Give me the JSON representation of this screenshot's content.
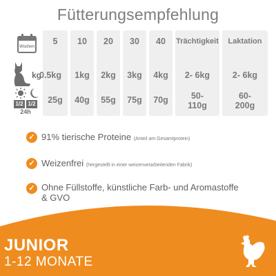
{
  "title": "Fütterungsempfehlung",
  "labels": {
    "weeks": "Wochen",
    "kg": "kg",
    "half1": "1/2",
    "half2": "1/2",
    "hours": "24h"
  },
  "columns": [
    {
      "head": "5",
      "weight": "0.5kg",
      "food": "25g"
    },
    {
      "head": "10",
      "weight": "1kg",
      "food": "40g"
    },
    {
      "head": "20",
      "weight": "2kg",
      "food": "55g"
    },
    {
      "head": "30",
      "weight": "3kg",
      "food": "75g"
    },
    {
      "head": "40",
      "weight": "4kg",
      "food": "70g"
    },
    {
      "head": "Trächtigkeit",
      "weight": "2- 6kg",
      "food_line1": "50-",
      "food_line2": "110g"
    },
    {
      "head": "Laktation",
      "weight": "2- 6kg",
      "food_line1": "60-",
      "food_line2": "200g"
    }
  ],
  "features": [
    {
      "text": "91% tierische Proteine",
      "note": "(Anteil am Gesamtprotein)"
    },
    {
      "text": "Weizenfrei",
      "note": "(hergestellt in einer weizenverarbeitenden Fabrik)"
    },
    {
      "text_line1": "Ohne Füllstoffe, künstliche Farb- und Aromastoffe",
      "text_line2": "& GVO"
    }
  ],
  "banner": {
    "line1": "JUNIOR",
    "line2": "1-12 MONATE"
  },
  "colors": {
    "accent": "#ef8c1f",
    "cell_bg": "#efefef",
    "text": "#7a7a7a"
  },
  "icons": [
    "calendar-icon",
    "cat-icon",
    "sun-moon-icon",
    "check-icon",
    "chicken-icon"
  ]
}
